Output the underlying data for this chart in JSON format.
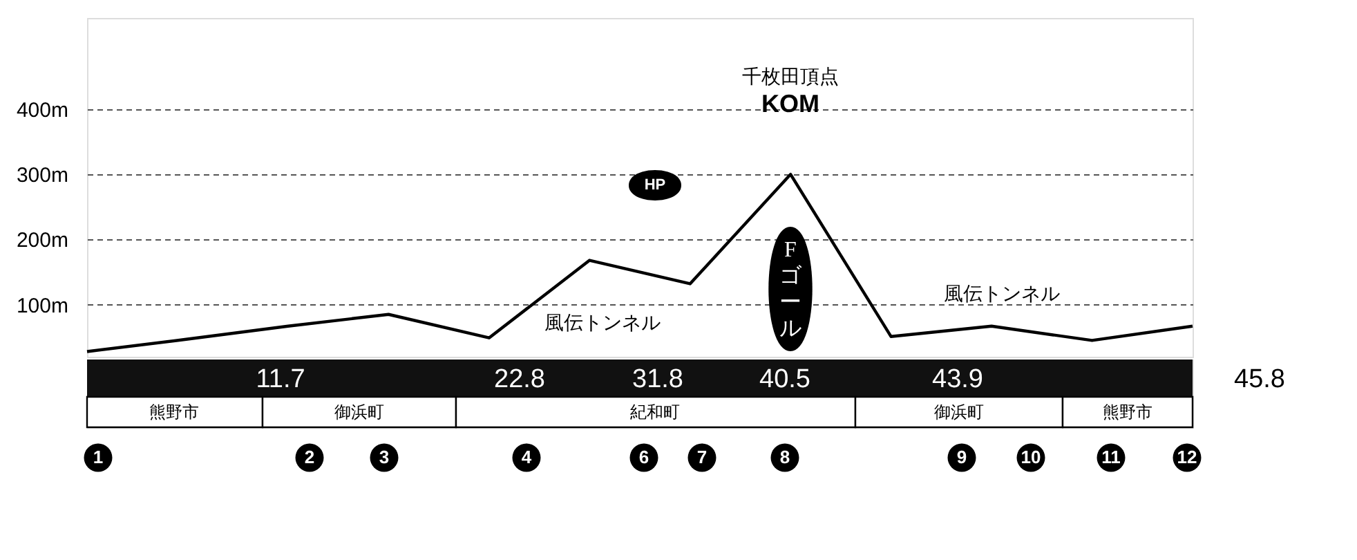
{
  "chart_data": {
    "type": "line",
    "categories": [
      null,
      null,
      null,
      null,
      null,
      null,
      null,
      null,
      null,
      null,
      null,
      null
    ],
    "series": [
      {
        "color": "#000000",
        "values": [
          28,
          47,
          67,
          85,
          49,
          168,
          132,
          300,
          51,
          67,
          45,
          67
        ]
      }
    ],
    "ylim": [
      20,
      540
    ],
    "yticks": [
      {
        "value": 100,
        "label": "100m"
      },
      {
        "value": 200,
        "label": "200m"
      },
      {
        "value": 300,
        "label": "300m"
      },
      {
        "value": 400,
        "label": "400m"
      }
    ],
    "grid": "y",
    "tick_labels": "y",
    "annotations": [
      "風伝トンネル",
      "風伝トンネル",
      "千枚田頂点",
      "KOM",
      "HP",
      "F ゴール",
      "11.7",
      "22.8",
      "31.8",
      "40.5",
      "43.9",
      "45.8",
      "熊野市",
      "御浜町",
      "紀和町",
      "御浜町",
      "熊野市",
      "1",
      "2",
      "3",
      "4",
      "6",
      "7",
      "8",
      "9",
      "10",
      "11",
      "12"
    ]
  }
}
